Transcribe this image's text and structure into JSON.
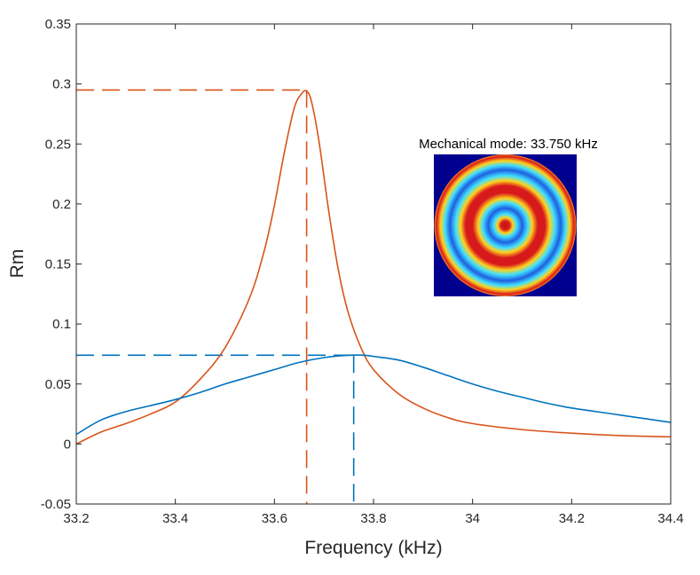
{
  "chart_data": {
    "type": "line",
    "title": "",
    "xlabel": "Frequency (kHz)",
    "ylabel": "Rm",
    "xlim": [
      33.2,
      34.4
    ],
    "ylim": [
      -0.05,
      0.35
    ],
    "x_ticks": [
      "33.2",
      "33.4",
      "33.6",
      "33.8",
      "34",
      "34.2",
      "34.4"
    ],
    "x_tick_values": [
      33.2,
      33.4,
      33.6,
      33.8,
      34.0,
      34.2,
      34.4
    ],
    "y_ticks": [
      "-0.05",
      "0",
      "0.05",
      "0.1",
      "0.15",
      "0.2",
      "0.25",
      "0.3",
      "0.35"
    ],
    "y_tick_values": [
      -0.05,
      0,
      0.05,
      0.1,
      0.15,
      0.2,
      0.25,
      0.3,
      0.35
    ],
    "grid": false,
    "legend": "none",
    "series": [
      {
        "color": "#D95319",
        "x": [
          33.2,
          33.25,
          33.3,
          33.35,
          33.4,
          33.45,
          33.5,
          33.55,
          33.58,
          33.6,
          33.62,
          33.64,
          33.655,
          33.665,
          33.675,
          33.69,
          33.71,
          33.73,
          33.75,
          33.775,
          33.8,
          33.85,
          33.9,
          33.95,
          34.0,
          34.1,
          34.2,
          34.3,
          34.4
        ],
        "y": [
          0.0,
          0.01,
          0.017,
          0.025,
          0.035,
          0.054,
          0.08,
          0.122,
          0.162,
          0.199,
          0.243,
          0.28,
          0.292,
          0.294,
          0.285,
          0.252,
          0.193,
          0.143,
          0.108,
          0.08,
          0.062,
          0.042,
          0.03,
          0.022,
          0.017,
          0.012,
          0.009,
          0.007,
          0.006
        ]
      },
      {
        "color": "#0072BD",
        "x": [
          33.2,
          33.25,
          33.3,
          33.35,
          33.4,
          33.45,
          33.5,
          33.55,
          33.6,
          33.65,
          33.7,
          33.75,
          33.78,
          33.8,
          33.85,
          33.9,
          33.95,
          34.0,
          34.05,
          34.1,
          34.15,
          34.2,
          34.25,
          34.3,
          34.35,
          34.4
        ],
        "y": [
          0.008,
          0.02,
          0.027,
          0.032,
          0.037,
          0.043,
          0.05,
          0.056,
          0.062,
          0.068,
          0.072,
          0.074,
          0.074,
          0.073,
          0.07,
          0.064,
          0.057,
          0.05,
          0.044,
          0.039,
          0.034,
          0.03,
          0.027,
          0.024,
          0.021,
          0.018
        ]
      }
    ],
    "reference_lines": [
      {
        "color": "#D95319",
        "x": 33.665,
        "y": 0.295
      },
      {
        "color": "#0072BD",
        "x": 33.76,
        "y": 0.074
      }
    ],
    "annotation": {
      "text": "Mechanical mode: 33.750 kHz",
      "inset_image": "mode-shape-heatmap",
      "inset_colors": {
        "background": "#00008F",
        "ring_red": "#D7191C",
        "ring_yellow": "#FFD21E",
        "ring_cyan": "#40E0FF",
        "ring_blue": "#1F5FE0"
      }
    }
  }
}
